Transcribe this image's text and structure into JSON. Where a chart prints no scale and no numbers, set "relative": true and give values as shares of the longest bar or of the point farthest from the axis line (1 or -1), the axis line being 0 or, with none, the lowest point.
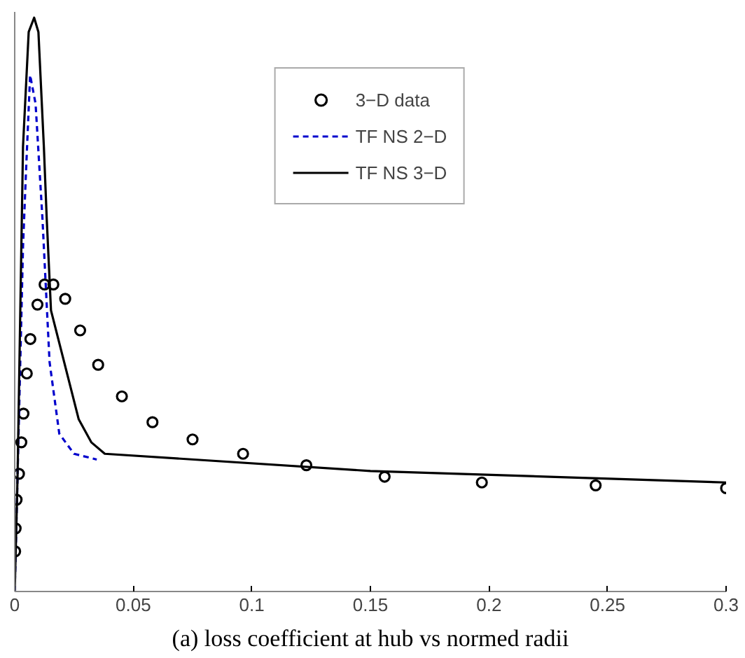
{
  "chart_data": {
    "type": "line",
    "relative": true,
    "annotations": [
      "(a) loss coefficient at hub vs normed radii"
    ],
    "xlim": [
      0,
      0.3
    ],
    "xticks": [
      0,
      0.05,
      0.1,
      0.15,
      0.2,
      0.25,
      0.3
    ],
    "legend": "top",
    "grid": false,
    "series": [
      {
        "name": "3−D data",
        "type": "scatter",
        "marker": "circle",
        "color": "#000000",
        "x": [
          0.0002,
          0.0004,
          0.0008,
          0.0018,
          0.0028,
          0.0037,
          0.0051,
          0.0066,
          0.0096,
          0.0126,
          0.0163,
          0.0213,
          0.0276,
          0.0352,
          0.0452,
          0.0581,
          0.075,
          0.0963,
          0.123,
          0.156,
          0.197,
          0.245,
          0.3
        ],
        "values": [
          0.07,
          0.11,
          0.16,
          0.205,
          0.26,
          0.31,
          0.38,
          0.44,
          0.5,
          0.535,
          0.535,
          0.51,
          0.455,
          0.395,
          0.34,
          0.295,
          0.265,
          0.24,
          0.22,
          0.2,
          0.19,
          0.185,
          0.18
        ]
      },
      {
        "name": "TF NS 2−D",
        "line_style": "dashed",
        "color": "#0000cc",
        "x": [
          0.0,
          0.0012,
          0.0035,
          0.0047,
          0.0065,
          0.0088,
          0.0117,
          0.0147,
          0.0188,
          0.025,
          0.0346
        ],
        "values": [
          0.0,
          0.2,
          0.6,
          0.725,
          0.9,
          0.85,
          0.65,
          0.4,
          0.275,
          0.24,
          0.23
        ]
      },
      {
        "name": "TF NS 3−D",
        "line_style": "solid",
        "color": "#000000",
        "x": [
          0.0,
          0.0012,
          0.0035,
          0.0059,
          0.0082,
          0.01,
          0.0123,
          0.0135,
          0.0153,
          0.027,
          0.0323,
          0.038,
          0.15,
          0.3
        ],
        "values": [
          0.0,
          0.2,
          0.775,
          0.975,
          1.0,
          0.975,
          0.775,
          0.65,
          0.49,
          0.3,
          0.26,
          0.24,
          0.21,
          0.19
        ]
      }
    ]
  }
}
